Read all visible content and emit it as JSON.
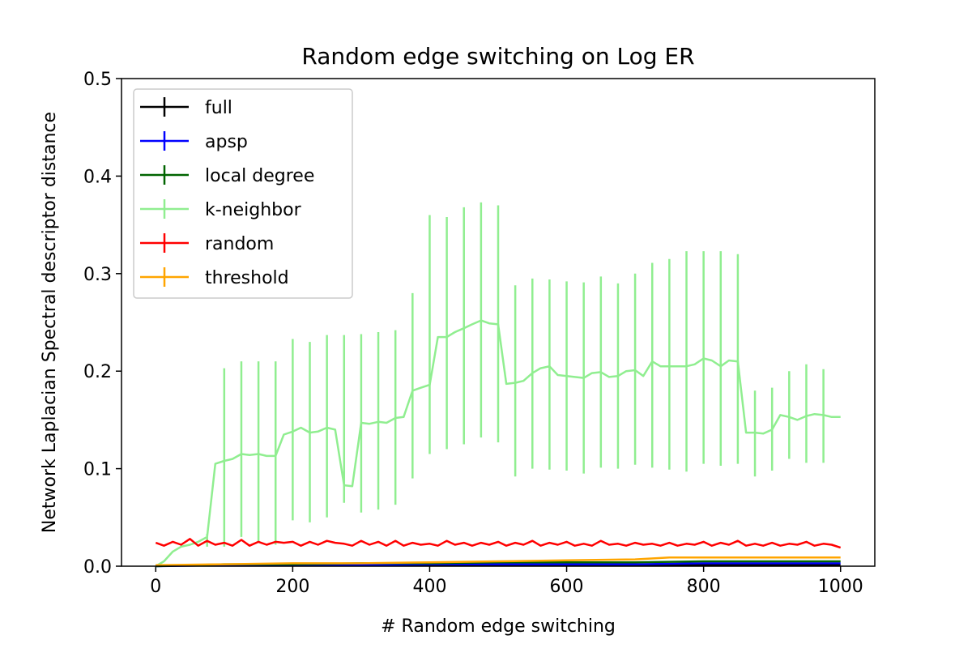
{
  "chart_data": {
    "type": "line",
    "title": "Random edge switching on Log ER",
    "xlabel": "# Random edge switching",
    "ylabel": "Network Laplacian Spectral descriptor distance",
    "xlim": [
      -50,
      1050
    ],
    "ylim": [
      0,
      0.5
    ],
    "xticks": [
      0,
      200,
      400,
      600,
      800,
      1000
    ],
    "yticks": [
      0.0,
      0.1,
      0.2,
      0.3,
      0.4,
      0.5
    ],
    "xtick_labels": [
      "0",
      "200",
      "400",
      "600",
      "800",
      "1000"
    ],
    "ytick_labels": [
      "0.0",
      "0.1",
      "0.2",
      "0.3",
      "0.4",
      "0.5"
    ],
    "legend_position": "top-left",
    "series": [
      {
        "name": "full",
        "color": "#000000",
        "x": [
          0,
          100,
          200,
          300,
          400,
          500,
          600,
          700,
          800,
          900,
          1000
        ],
        "y": [
          0.001,
          0.001,
          0.001,
          0.001,
          0.001,
          0.001,
          0.001,
          0.001,
          0.001,
          0.001,
          0.001
        ]
      },
      {
        "name": "apsp",
        "color": "#0000ff",
        "x": [
          0,
          100,
          200,
          300,
          400,
          500,
          600,
          700,
          800,
          900,
          1000
        ],
        "y": [
          0.0,
          0.001,
          0.001,
          0.001,
          0.002,
          0.002,
          0.002,
          0.002,
          0.003,
          0.003,
          0.003
        ]
      },
      {
        "name": "local degree",
        "color": "#006400",
        "x": [
          0,
          100,
          200,
          300,
          400,
          500,
          600,
          700,
          800,
          900,
          1000
        ],
        "y": [
          0.0,
          0.002,
          0.002,
          0.003,
          0.003,
          0.004,
          0.004,
          0.004,
          0.005,
          0.005,
          0.005
        ]
      },
      {
        "name": "k-neighbor",
        "color": "#90ee90",
        "x": [
          0,
          12,
          25,
          37,
          50,
          62,
          75,
          87,
          100,
          112,
          125,
          137,
          150,
          162,
          175,
          187,
          200,
          212,
          225,
          237,
          250,
          262,
          275,
          287,
          300,
          312,
          325,
          337,
          350,
          362,
          375,
          387,
          400,
          412,
          425,
          437,
          450,
          462,
          475,
          487,
          500,
          512,
          525,
          537,
          550,
          562,
          575,
          587,
          600,
          612,
          625,
          637,
          650,
          662,
          675,
          687,
          700,
          712,
          725,
          737,
          750,
          762,
          775,
          787,
          800,
          812,
          825,
          837,
          850,
          862,
          875,
          887,
          900,
          912,
          925,
          937,
          950,
          962,
          975,
          987,
          1000
        ],
        "y": [
          0.0,
          0.005,
          0.015,
          0.02,
          0.022,
          0.025,
          0.03,
          0.105,
          0.108,
          0.11,
          0.115,
          0.114,
          0.115,
          0.113,
          0.113,
          0.135,
          0.138,
          0.142,
          0.137,
          0.138,
          0.142,
          0.14,
          0.083,
          0.082,
          0.147,
          0.146,
          0.148,
          0.147,
          0.152,
          0.153,
          0.18,
          0.183,
          0.186,
          0.235,
          0.235,
          0.24,
          0.244,
          0.248,
          0.252,
          0.249,
          0.248,
          0.187,
          0.188,
          0.19,
          0.198,
          0.203,
          0.205,
          0.196,
          0.195,
          0.194,
          0.193,
          0.198,
          0.199,
          0.194,
          0.195,
          0.2,
          0.201,
          0.195,
          0.21,
          0.205,
          0.205,
          0.205,
          0.205,
          0.207,
          0.213,
          0.211,
          0.205,
          0.211,
          0.21,
          0.137,
          0.137,
          0.136,
          0.14,
          0.155,
          0.153,
          0.15,
          0.154,
          0.156,
          0.155,
          0.153,
          0.153
        ],
        "err_x": [
          75,
          100,
          125,
          150,
          175,
          200,
          225,
          250,
          275,
          300,
          325,
          350,
          375,
          400,
          425,
          450,
          475,
          500,
          525,
          550,
          575,
          600,
          625,
          650,
          675,
          700,
          725,
          750,
          775,
          800,
          825,
          850,
          875,
          900,
          925,
          950,
          975
        ],
        "err_low": [
          0.02,
          0.02,
          0.03,
          0.025,
          0.022,
          0.047,
          0.045,
          0.05,
          0.065,
          0.055,
          0.058,
          0.063,
          0.09,
          0.115,
          0.12,
          0.125,
          0.132,
          0.127,
          0.092,
          0.1,
          0.099,
          0.098,
          0.095,
          0.101,
          0.1,
          0.104,
          0.101,
          0.099,
          0.097,
          0.105,
          0.103,
          0.105,
          0.092,
          0.098,
          0.11,
          0.106,
          0.106
        ],
        "err_high": [
          0.033,
          0.203,
          0.21,
          0.21,
          0.21,
          0.233,
          0.23,
          0.237,
          0.237,
          0.238,
          0.24,
          0.242,
          0.28,
          0.36,
          0.358,
          0.368,
          0.373,
          0.37,
          0.288,
          0.295,
          0.294,
          0.292,
          0.291,
          0.297,
          0.29,
          0.3,
          0.311,
          0.315,
          0.323,
          0.323,
          0.323,
          0.32,
          0.18,
          0.183,
          0.2,
          0.207,
          0.202
        ]
      },
      {
        "name": "random",
        "color": "#ff0000",
        "x": [
          0,
          12,
          25,
          37,
          50,
          62,
          75,
          87,
          100,
          112,
          125,
          137,
          150,
          162,
          175,
          187,
          200,
          212,
          225,
          237,
          250,
          262,
          275,
          287,
          300,
          312,
          325,
          337,
          350,
          362,
          375,
          387,
          400,
          412,
          425,
          437,
          450,
          462,
          475,
          487,
          500,
          512,
          525,
          537,
          550,
          562,
          575,
          587,
          600,
          612,
          625,
          637,
          650,
          662,
          675,
          687,
          700,
          712,
          725,
          737,
          750,
          762,
          775,
          787,
          800,
          812,
          825,
          837,
          850,
          862,
          875,
          887,
          900,
          912,
          925,
          937,
          950,
          962,
          975,
          987,
          1000
        ],
        "y": [
          0.024,
          0.021,
          0.025,
          0.022,
          0.028,
          0.021,
          0.026,
          0.022,
          0.024,
          0.021,
          0.027,
          0.021,
          0.025,
          0.022,
          0.025,
          0.024,
          0.025,
          0.021,
          0.025,
          0.022,
          0.026,
          0.024,
          0.023,
          0.021,
          0.026,
          0.022,
          0.025,
          0.021,
          0.026,
          0.021,
          0.024,
          0.022,
          0.023,
          0.021,
          0.026,
          0.022,
          0.024,
          0.021,
          0.024,
          0.022,
          0.025,
          0.021,
          0.024,
          0.022,
          0.026,
          0.021,
          0.024,
          0.022,
          0.025,
          0.021,
          0.023,
          0.021,
          0.026,
          0.022,
          0.023,
          0.021,
          0.024,
          0.022,
          0.023,
          0.021,
          0.024,
          0.021,
          0.023,
          0.022,
          0.025,
          0.021,
          0.024,
          0.022,
          0.026,
          0.021,
          0.023,
          0.021,
          0.024,
          0.021,
          0.023,
          0.022,
          0.025,
          0.021,
          0.023,
          0.022,
          0.019
        ]
      },
      {
        "name": "threshold",
        "color": "#ffa500",
        "x": [
          0,
          100,
          200,
          300,
          400,
          500,
          600,
          700,
          750,
          800,
          900,
          1000
        ],
        "y": [
          0.001,
          0.002,
          0.003,
          0.003,
          0.004,
          0.005,
          0.006,
          0.007,
          0.009,
          0.009,
          0.009,
          0.009
        ]
      }
    ]
  }
}
